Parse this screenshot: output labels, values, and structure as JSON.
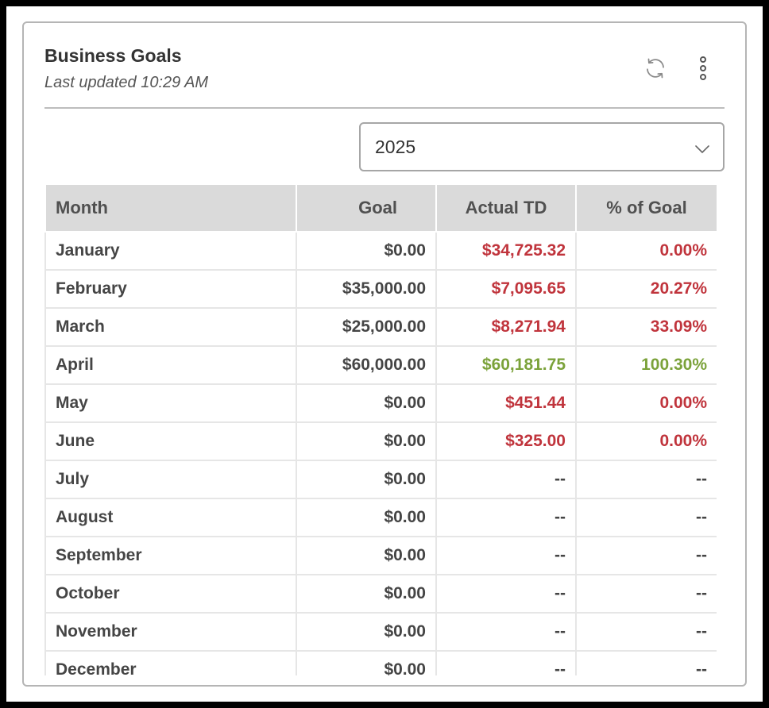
{
  "card": {
    "title": "Business Goals",
    "subtitle": "Last updated 10:29 AM",
    "icons": {
      "refresh": "refresh-icon",
      "more": "more-vertical-icon"
    }
  },
  "year_select": {
    "value": "2025",
    "icon": "chevron-down-icon"
  },
  "table": {
    "headers": [
      "Month",
      "Goal",
      "Actual TD",
      "% of Goal"
    ],
    "rows": [
      {
        "month": "January",
        "goal": "$0.00",
        "actual": "$34,725.32",
        "pct": "0.00%",
        "status": "negative"
      },
      {
        "month": "February",
        "goal": "$35,000.00",
        "actual": "$7,095.65",
        "pct": "20.27%",
        "status": "negative"
      },
      {
        "month": "March",
        "goal": "$25,000.00",
        "actual": "$8,271.94",
        "pct": "33.09%",
        "status": "negative"
      },
      {
        "month": "April",
        "goal": "$60,000.00",
        "actual": "$60,181.75",
        "pct": "100.30%",
        "status": "positive"
      },
      {
        "month": "May",
        "goal": "$0.00",
        "actual": "$451.44",
        "pct": "0.00%",
        "status": "negative"
      },
      {
        "month": "June",
        "goal": "$0.00",
        "actual": "$325.00",
        "pct": "0.00%",
        "status": "negative"
      },
      {
        "month": "July",
        "goal": "$0.00",
        "actual": "--",
        "pct": "--",
        "status": "none"
      },
      {
        "month": "August",
        "goal": "$0.00",
        "actual": "--",
        "pct": "--",
        "status": "none"
      },
      {
        "month": "September",
        "goal": "$0.00",
        "actual": "--",
        "pct": "--",
        "status": "none"
      },
      {
        "month": "October",
        "goal": "$0.00",
        "actual": "--",
        "pct": "--",
        "status": "none"
      },
      {
        "month": "November",
        "goal": "$0.00",
        "actual": "--",
        "pct": "--",
        "status": "none"
      },
      {
        "month": "December",
        "goal": "$0.00",
        "actual": "--",
        "pct": "--",
        "status": "none"
      }
    ]
  },
  "colors": {
    "negative": "#c0343c",
    "positive": "#7ba23a",
    "header_bg": "#dadada"
  }
}
